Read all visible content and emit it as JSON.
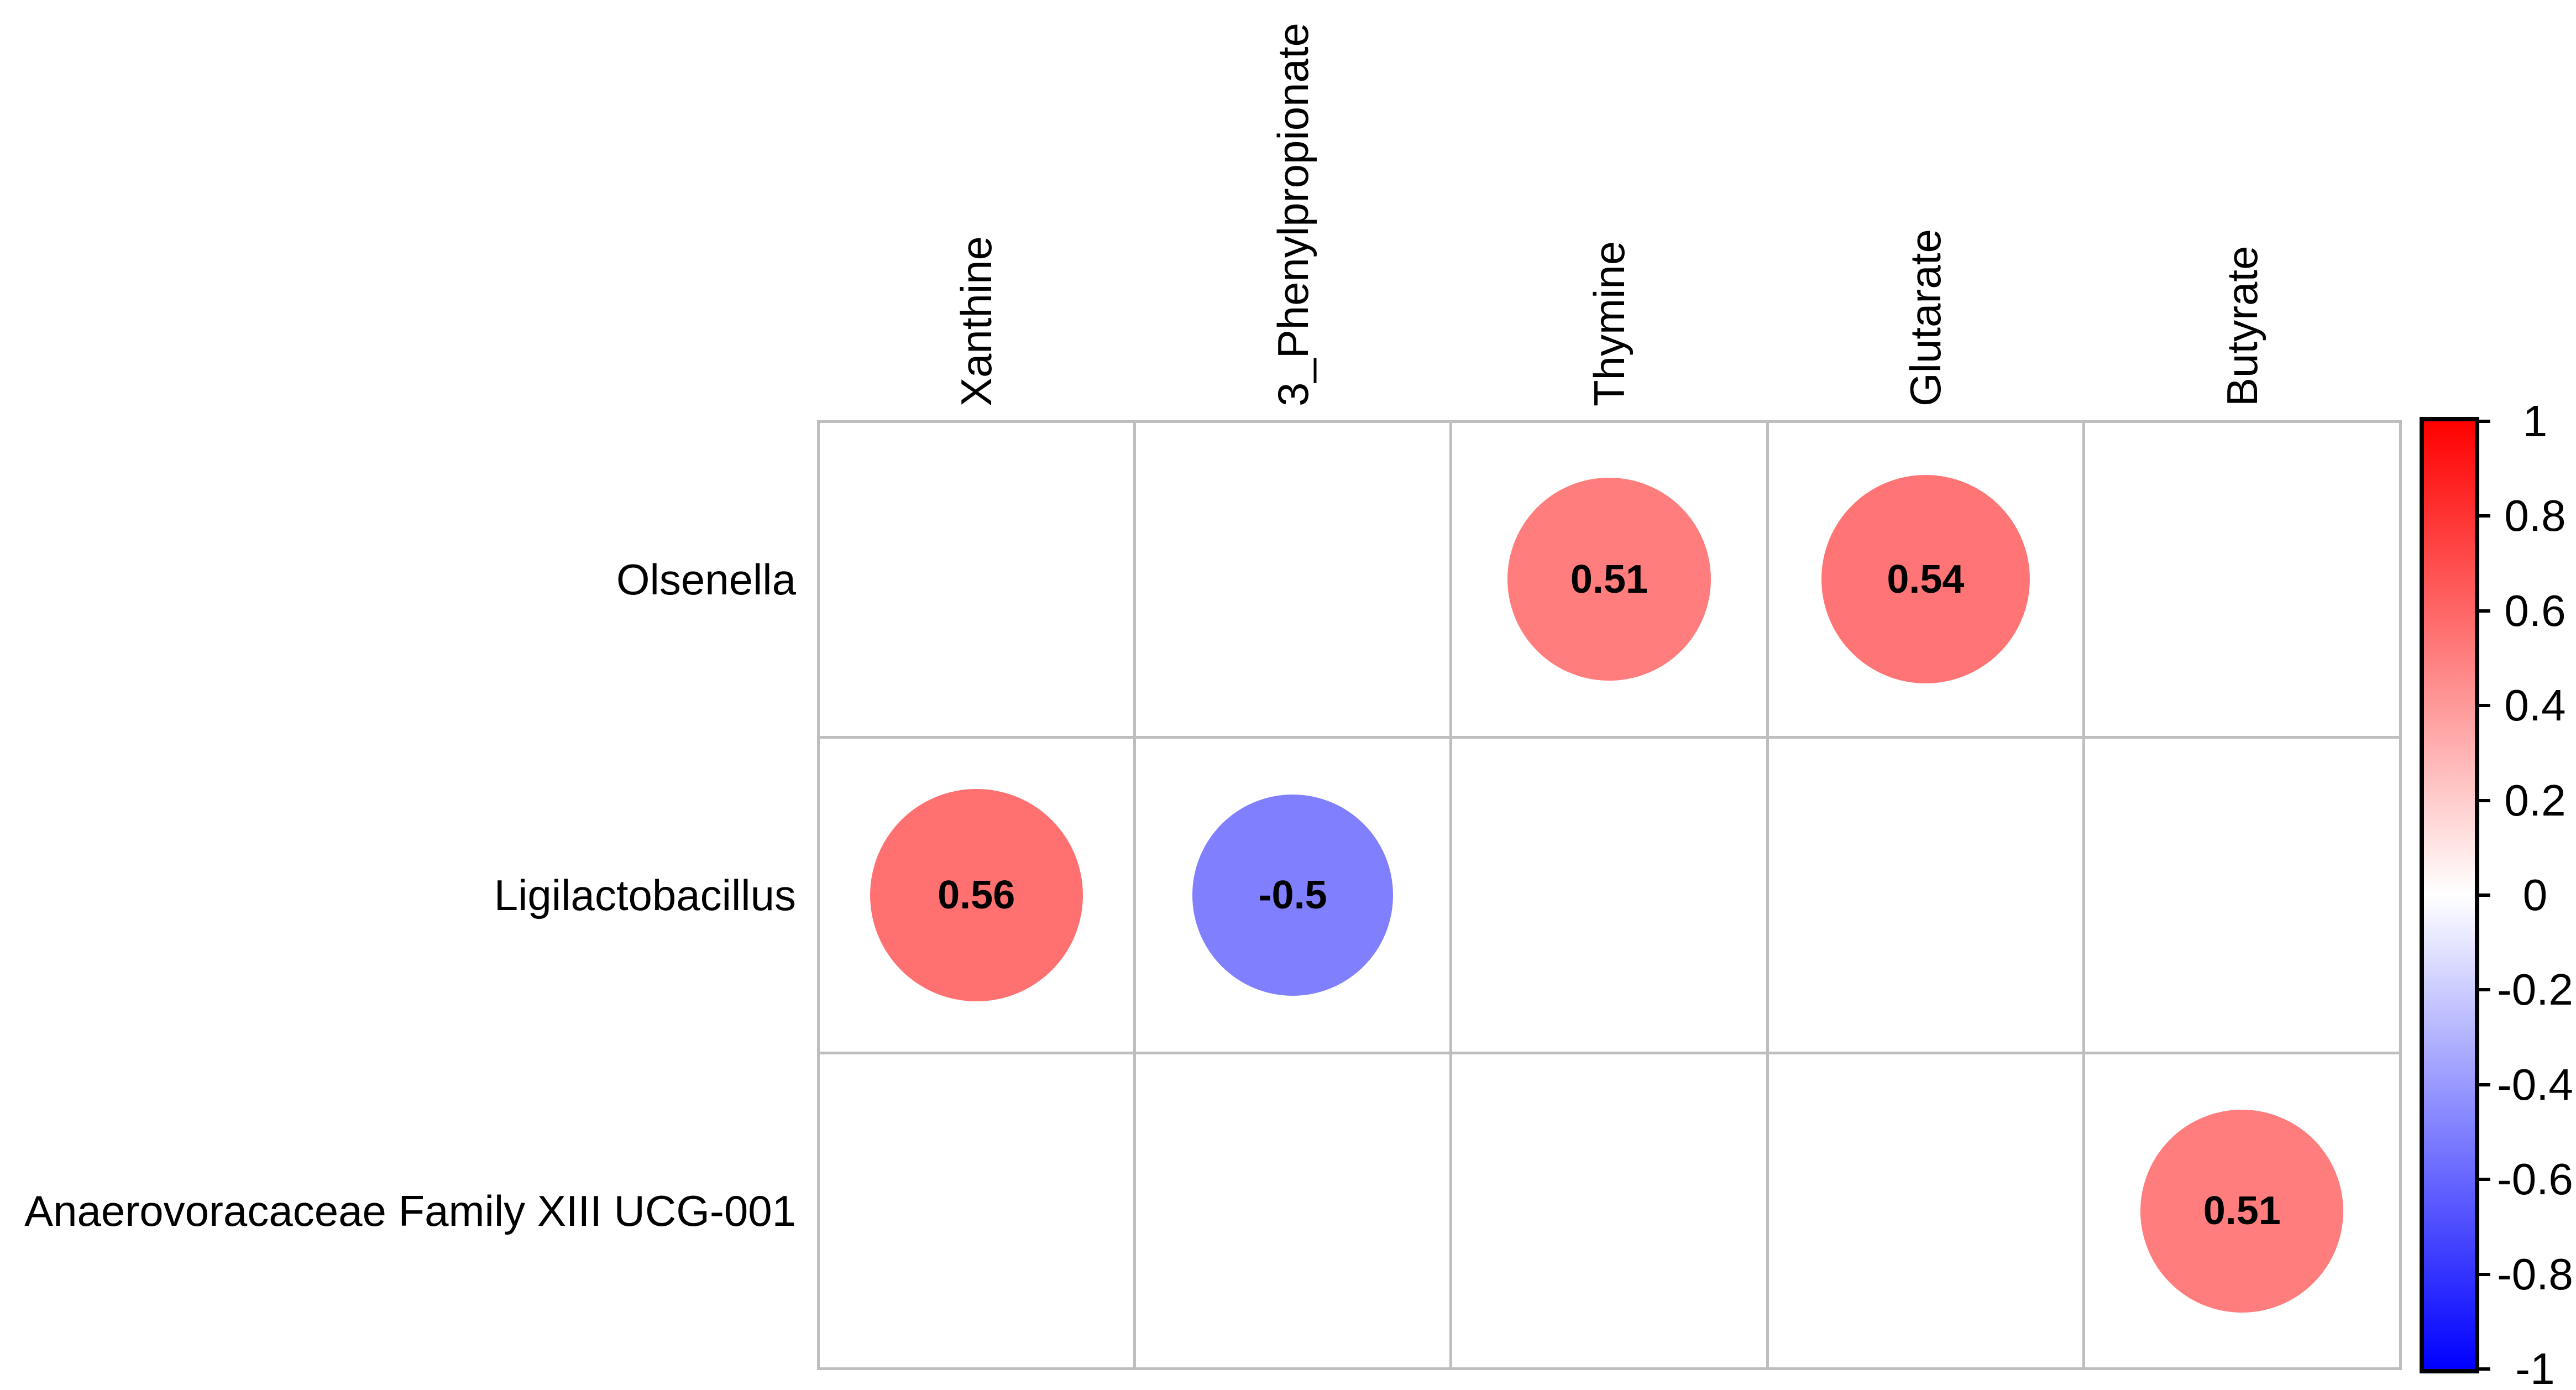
{
  "chart_data": {
    "type": "heatmap",
    "subtype": "correlation-bubble-matrix",
    "title": "",
    "rows": [
      "Olsenella",
      "Ligilactobacillus",
      "Anaerovoracaceae Family XIII UCG-001"
    ],
    "columns": [
      "Xanthine",
      "3_Phenylpropionate",
      "Thymine",
      "Glutarate",
      "Butyrate"
    ],
    "values": [
      [
        null,
        null,
        0.51,
        0.54,
        null
      ],
      [
        0.56,
        -0.5,
        null,
        null,
        null
      ],
      [
        null,
        null,
        null,
        null,
        0.51
      ]
    ],
    "cells": [
      {
        "row": "Olsenella",
        "row_index": 0,
        "column": "Thymine",
        "col_index": 2,
        "value": 0.51,
        "label": "0.51",
        "color": "#FF7D7D"
      },
      {
        "row": "Olsenella",
        "row_index": 0,
        "column": "Glutarate",
        "col_index": 3,
        "value": 0.54,
        "label": "0.54",
        "color": "#FF7575"
      },
      {
        "row": "Ligilactobacillus",
        "row_index": 1,
        "column": "Xanthine",
        "col_index": 0,
        "value": 0.56,
        "label": "0.56",
        "color": "#FF7070"
      },
      {
        "row": "Ligilactobacillus",
        "row_index": 1,
        "column": "3_Phenylpropionate",
        "col_index": 1,
        "value": -0.5,
        "label": "-0.5",
        "color": "#8080FF"
      },
      {
        "row": "Anaerovoracaceae Family XIII UCG-001",
        "row_index": 2,
        "column": "Butyrate",
        "col_index": 4,
        "value": 0.51,
        "label": "0.51",
        "color": "#FF7D7D"
      }
    ],
    "grid": true,
    "legend_position": "right",
    "colorbar": {
      "range": [
        -1,
        1
      ],
      "tick_labels": [
        "1",
        "0.8",
        "0.6",
        "0.4",
        "0.2",
        "0",
        "-0.2",
        "-0.4",
        "-0.6",
        "-0.8",
        "-1"
      ],
      "top_color": "#FF0000",
      "mid_color": "#FFFFFF",
      "bottom_color": "#0000FF"
    }
  },
  "colors": {
    "background": "#FFFFFF",
    "gridline": "#BEBEBE",
    "text": "#000000",
    "colorbar_border": "#000000"
  }
}
